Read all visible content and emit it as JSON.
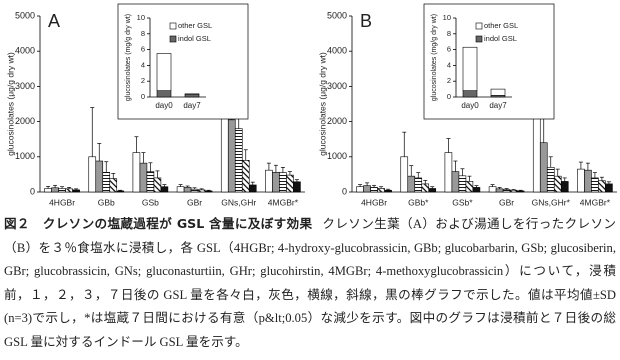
{
  "chart_data": [
    {
      "type": "bar",
      "label": "A",
      "ylabel": "glucosinolates (μg/g dry wt)",
      "categories": [
        "4HGBr",
        "GBb",
        "GSb",
        "GBr",
        "GNs,GHr",
        "4MGBr*"
      ],
      "ylim": [
        0,
        5000
      ],
      "yticks": [
        0,
        1000,
        2000,
        3000,
        4000,
        5000
      ],
      "series": [
        {
          "color": "#ffffff",
          "values": [
            100,
            1000,
            1120,
            150,
            2500,
            620
          ],
          "errors": [
            60,
            1400,
            450,
            60,
            2800,
            200
          ]
        },
        {
          "color": "#999999",
          "values": [
            120,
            880,
            820,
            130,
            2050,
            560
          ],
          "errors": [
            70,
            500,
            300,
            40,
            1700,
            200
          ]
        },
        {
          "color": "#ffffff",
          "pattern": "horizontal",
          "values": [
            100,
            560,
            580,
            80,
            1800,
            550
          ],
          "errors": [
            50,
            300,
            250,
            40,
            400,
            150
          ]
        },
        {
          "color": "#ffffff",
          "pattern": "diagonal",
          "values": [
            90,
            380,
            400,
            60,
            900,
            480
          ],
          "errors": [
            40,
            150,
            200,
            30,
            300,
            100
          ]
        },
        {
          "color": "#111111",
          "values": [
            60,
            30,
            150,
            30,
            200,
            290
          ],
          "errors": [
            30,
            20,
            60,
            20,
            80,
            60
          ]
        }
      ]
    },
    {
      "type": "stacked-bar",
      "ylabel": "glucosinolates (mg/g dry wt)",
      "categories": [
        "day0",
        "day7"
      ],
      "ylim": [
        0,
        10
      ],
      "yticks": [
        0,
        2,
        4,
        6,
        8,
        10
      ],
      "series": [
        {
          "name": "indol GSL",
          "color": "#666666",
          "values": [
            0.8,
            0.3
          ]
        },
        {
          "name": "other GSL",
          "color": "#ffffff",
          "values": [
            4.7,
            0.1
          ]
        }
      ]
    },
    {
      "type": "bar",
      "label": "B",
      "ylabel": "glucosinolates (μg/g dry wt)",
      "categories": [
        "4HGBr",
        "GBb*",
        "GSb*",
        "GBr",
        "GNs,GHr*",
        "4MGBr*"
      ],
      "ylim": [
        0,
        5000
      ],
      "yticks": [
        0,
        1000,
        2000,
        3000,
        4000,
        5000
      ],
      "series": [
        {
          "color": "#ffffff",
          "values": [
            150,
            1000,
            1120,
            150,
            2500,
            650
          ],
          "errors": [
            60,
            700,
            400,
            60,
            1200,
            200
          ]
        },
        {
          "color": "#999999",
          "values": [
            180,
            450,
            580,
            90,
            1400,
            620
          ],
          "errors": [
            80,
            300,
            300,
            40,
            800,
            200
          ]
        },
        {
          "color": "#ffffff",
          "pattern": "horizontal",
          "values": [
            130,
            400,
            460,
            70,
            700,
            400
          ],
          "errors": [
            60,
            150,
            200,
            30,
            300,
            150
          ]
        },
        {
          "color": "#ffffff",
          "pattern": "diagonal",
          "values": [
            100,
            230,
            300,
            50,
            450,
            320
          ],
          "errors": [
            50,
            100,
            150,
            20,
            200,
            100
          ]
        },
        {
          "color": "#111111",
          "values": [
            50,
            100,
            130,
            30,
            300,
            230
          ],
          "errors": [
            30,
            50,
            50,
            20,
            100,
            60
          ]
        }
      ]
    },
    {
      "type": "stacked-bar",
      "ylabel": "glucosinolates (mg/g dry wt)",
      "categories": [
        "day0",
        "day7"
      ],
      "ylim": [
        0,
        10
      ],
      "yticks": [
        0,
        2,
        4,
        6,
        8,
        10
      ],
      "series": [
        {
          "name": "indol GSL",
          "color": "#666666",
          "values": [
            0.8,
            0.2
          ]
        },
        {
          "name": "other GSL",
          "color": "#ffffff",
          "values": [
            5.5,
            0.8
          ]
        }
      ]
    }
  ],
  "caption": {
    "title": "図２　クレソンの塩蔵過程が GSL 含量に及ぼす効果",
    "body": "クレソン生葉（A）および湯通しを行ったクレソン（B）を３％食塩水に浸積し，各 GSL（4HGBr; 4-hydroxy-glucobrassicin, GBb; glucobarbarin, GSb; glucosiberin, GBr; glucobrassicin, GNs; gluconasturtiin, GHr; glucohirstin, 4MGBr; 4-methoxyglucobrassicin）について，浸積前，１，２，３，７日後の GSL 量を各々白，灰色，横線，斜線，黒の棒グラフで示した。値は平均値±SD (n=3)で示し，*は塩蔵７日間における有意（p&lt;0.05）な減少を示す。図中のグラフは浸積前と７日後の総 GSL 量に対するインドール GSL 量を示す。"
  }
}
